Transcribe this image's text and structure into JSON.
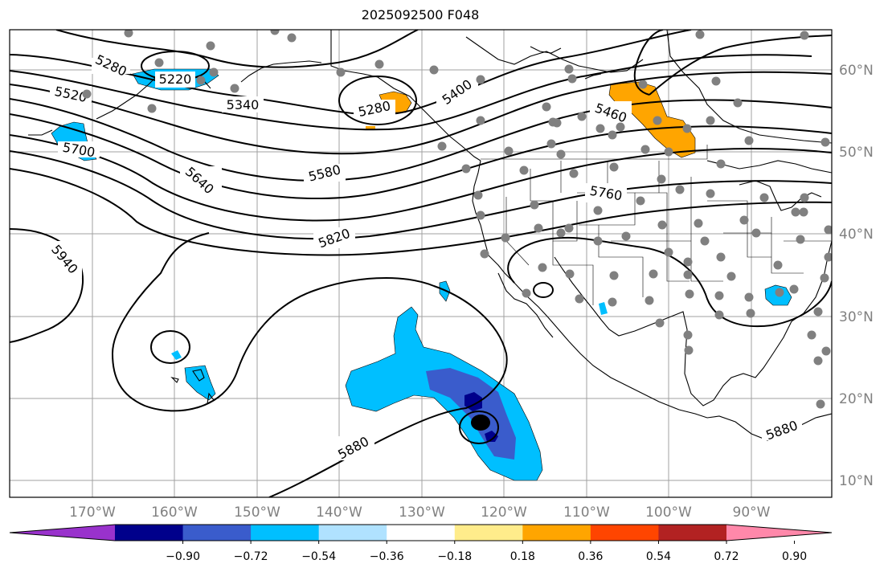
{
  "title": "2025092500 F048",
  "map": {
    "lat_labels": [
      "60°N",
      "50°N",
      "40°N",
      "30°N",
      "20°N",
      "10°N"
    ],
    "lon_labels": [
      "170°W",
      "160°W",
      "150°W",
      "140°W",
      "130°W",
      "120°W",
      "110°W",
      "100°W",
      "90°W"
    ],
    "contour_labels": [
      "5220",
      "5280",
      "5340",
      "5520",
      "5700",
      "5640",
      "5580",
      "5280",
      "5400",
      "5460",
      "5760",
      "5820",
      "5940",
      "5880",
      "5880"
    ],
    "colors": {
      "coast": "#000000",
      "grid": "#a0a0a0",
      "station": "#808080",
      "positive_fill": "#ffa500",
      "negative_fill": "#00bfff",
      "strong_negative_fill": "#3a5ccc",
      "max_negative_fill": "#00008b"
    }
  },
  "colorbar": {
    "ticks": [
      "−0.90",
      "−0.72",
      "−0.54",
      "−0.36",
      "−0.18",
      "0.18",
      "0.36",
      "0.54",
      "0.72",
      "0.90"
    ],
    "colors": [
      "#9932cc",
      "#00008b",
      "#3a5ccc",
      "#00bfff",
      "#b0e2ff",
      "#ffffff",
      "#ffec8b",
      "#ffa500",
      "#ff4500",
      "#b22222",
      "#ff88aa"
    ]
  }
}
